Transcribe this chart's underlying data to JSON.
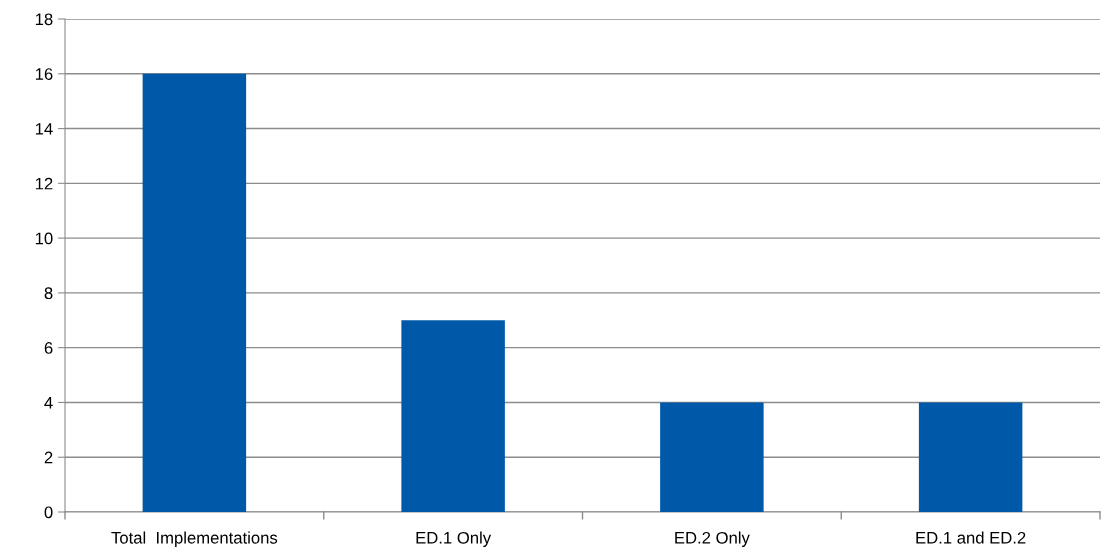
{
  "chart_data": {
    "type": "bar",
    "categories": [
      "Total  Implementations",
      "ED.1 Only",
      "ED.2 Only",
      "ED.1 and ED.2"
    ],
    "values": [
      16,
      7,
      4,
      4
    ],
    "color": "#0058a8",
    "ylim": [
      0,
      18
    ],
    "yticks": [
      0,
      2,
      4,
      6,
      8,
      10,
      12,
      14,
      16,
      18
    ],
    "grid": "y",
    "legend": false
  }
}
